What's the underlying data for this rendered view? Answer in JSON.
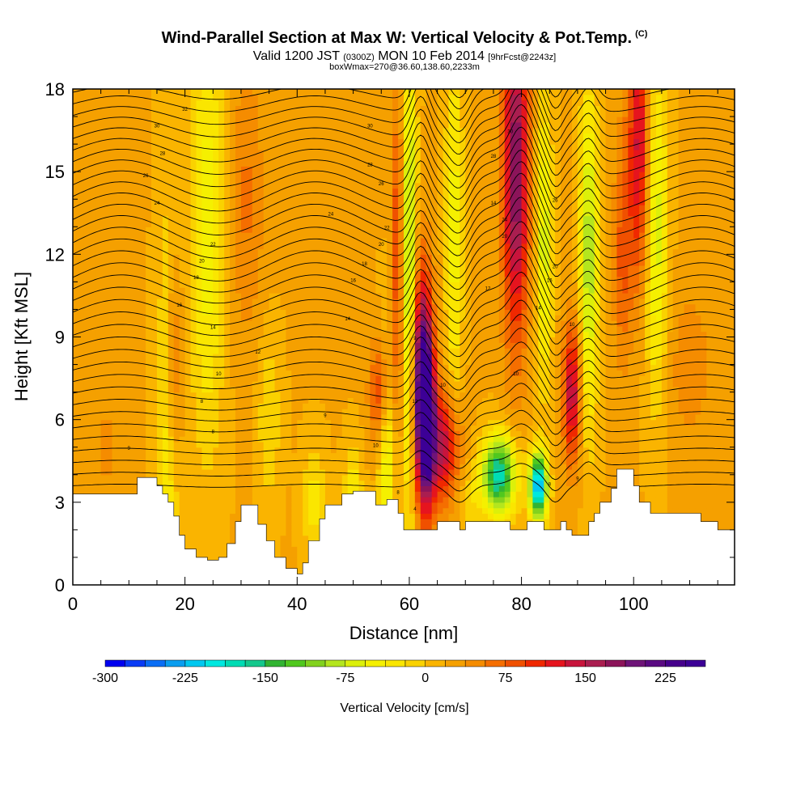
{
  "title": "Wind-Parallel Section at Max W: Vertical Velocity & Pot.Temp.",
  "title_mark": "(C)",
  "subtitle_main": "Valid 1200 JST",
  "subtitle_z": "(0300Z)",
  "subtitle_date": "MON 10 Feb 2014",
  "subtitle_fcst": "[9hrFcst@2243z]",
  "subtitle_box": "boxWmax=270@36.60,138.60,2233m",
  "chart_data": {
    "type": "heatmap",
    "xlabel": "Distance [nm]",
    "ylabel": "Height [Kft MSL]",
    "xlim": [
      0,
      118
    ],
    "ylim": [
      0,
      18
    ],
    "xticks": [
      0,
      20,
      40,
      60,
      80,
      100
    ],
    "yticks": [
      0,
      3,
      6,
      9,
      12,
      15,
      18
    ],
    "colorbar": {
      "label": "Vertical Velocity [cm/s]",
      "ticks": [
        -300,
        -225,
        -150,
        -75,
        0,
        75,
        150,
        225
      ],
      "min": -300,
      "max": 262.5,
      "step": 18.75,
      "colors": [
        "#0000f0",
        "#0a3cf5",
        "#0a6ef5",
        "#0a9ef0",
        "#00c8f0",
        "#00e8e0",
        "#00dcb4",
        "#14c88c",
        "#32b432",
        "#50c81e",
        "#82d21e",
        "#b4e61e",
        "#dcf00a",
        "#f5f000",
        "#fae600",
        "#fad200",
        "#fab400",
        "#f5a000",
        "#f58c00",
        "#f56e00",
        "#f05000",
        "#f02800",
        "#e6141e",
        "#c8143c",
        "#aa1e50",
        "#8c145a",
        "#6e1478",
        "#5a0a82",
        "#46008c",
        "#3c0096"
      ]
    },
    "terrain_kft": [
      [
        0,
        3.3
      ],
      [
        10,
        3.3
      ],
      [
        11.5,
        3.9
      ],
      [
        13.5,
        3.9
      ],
      [
        15,
        3.6
      ],
      [
        16,
        3.3
      ],
      [
        17,
        3.0
      ],
      [
        18,
        2.5
      ],
      [
        19,
        1.8
      ],
      [
        20,
        1.3
      ],
      [
        22,
        1.0
      ],
      [
        24,
        0.9
      ],
      [
        26,
        1.0
      ],
      [
        27.5,
        1.5
      ],
      [
        29,
        2.3
      ],
      [
        30,
        2.9
      ],
      [
        32,
        2.9
      ],
      [
        33,
        2.2
      ],
      [
        34.5,
        1.6
      ],
      [
        36,
        1.0
      ],
      [
        38,
        0.6
      ],
      [
        40,
        0.4
      ],
      [
        41,
        0.8
      ],
      [
        42,
        1.6
      ],
      [
        44,
        2.4
      ],
      [
        45,
        2.9
      ],
      [
        47,
        2.9
      ],
      [
        48,
        3.3
      ],
      [
        50,
        3.4
      ],
      [
        52,
        3.4
      ],
      [
        54,
        2.9
      ],
      [
        56,
        3.1
      ],
      [
        58,
        2.6
      ],
      [
        59,
        2.0
      ],
      [
        64,
        2.0
      ],
      [
        65,
        2.3
      ],
      [
        68,
        2.3
      ],
      [
        69,
        2.0
      ],
      [
        70,
        2.3
      ],
      [
        77,
        2.3
      ],
      [
        78,
        2.0
      ],
      [
        80,
        2.0
      ],
      [
        81,
        2.3
      ],
      [
        83,
        2.3
      ],
      [
        84,
        2.0
      ],
      [
        86,
        2.0
      ],
      [
        87,
        2.3
      ],
      [
        88,
        2.0
      ],
      [
        89,
        1.8
      ],
      [
        91,
        1.8
      ],
      [
        92,
        2.3
      ],
      [
        93,
        2.6
      ],
      [
        94,
        3.0
      ],
      [
        96,
        3.5
      ],
      [
        97,
        4.2
      ],
      [
        99,
        4.2
      ],
      [
        100,
        3.6
      ],
      [
        101,
        3.0
      ],
      [
        103,
        2.6
      ],
      [
        110,
        2.6
      ],
      [
        112,
        2.3
      ],
      [
        115,
        2.0
      ],
      [
        118,
        2.0
      ]
    ],
    "contour_labels": [
      {
        "text": "9",
        "x": 10,
        "y": 4.9
      },
      {
        "text": "8",
        "x": 25,
        "y": 5.5
      },
      {
        "text": "8",
        "x": 23,
        "y": 6.6
      },
      {
        "text": "10",
        "x": 26,
        "y": 7.6
      },
      {
        "text": "14",
        "x": 25,
        "y": 9.3
      },
      {
        "text": "16",
        "x": 19,
        "y": 10.1
      },
      {
        "text": "18",
        "x": 22,
        "y": 11.1
      },
      {
        "text": "20",
        "x": 23,
        "y": 11.7
      },
      {
        "text": "22",
        "x": 25,
        "y": 12.3
      },
      {
        "text": "24",
        "x": 15,
        "y": 13.8
      },
      {
        "text": "26",
        "x": 13,
        "y": 14.8
      },
      {
        "text": "28",
        "x": 16,
        "y": 15.6
      },
      {
        "text": "30",
        "x": 15,
        "y": 16.6
      },
      {
        "text": "32",
        "x": 20,
        "y": 17.2
      },
      {
        "text": "12",
        "x": 33,
        "y": 8.4
      },
      {
        "text": "9",
        "x": 45,
        "y": 6.1
      },
      {
        "text": "14",
        "x": 49,
        "y": 9.6
      },
      {
        "text": "10",
        "x": 54,
        "y": 5.0
      },
      {
        "text": "16",
        "x": 50,
        "y": 11.0
      },
      {
        "text": "18",
        "x": 52,
        "y": 11.6
      },
      {
        "text": "20",
        "x": 55,
        "y": 12.3
      },
      {
        "text": "22",
        "x": 56,
        "y": 12.9
      },
      {
        "text": "24",
        "x": 46,
        "y": 13.4
      },
      {
        "text": "26",
        "x": 55,
        "y": 14.5
      },
      {
        "text": "28",
        "x": 53,
        "y": 15.2
      },
      {
        "text": "30",
        "x": 53,
        "y": 16.6
      },
      {
        "text": "12",
        "x": 61,
        "y": 6.6
      },
      {
        "text": "9",
        "x": 61,
        "y": 8.9
      },
      {
        "text": "8",
        "x": 58,
        "y": 3.3
      },
      {
        "text": "4",
        "x": 61,
        "y": 2.7
      },
      {
        "text": "10",
        "x": 66,
        "y": 7.2
      },
      {
        "text": "12",
        "x": 74,
        "y": 10.7
      },
      {
        "text": "14",
        "x": 75,
        "y": 13.8
      },
      {
        "text": "28",
        "x": 75,
        "y": 15.5
      },
      {
        "text": "30",
        "x": 78,
        "y": 16.4
      },
      {
        "text": "20",
        "x": 77,
        "y": 12.6
      },
      {
        "text": "24",
        "x": 77,
        "y": 13.2
      },
      {
        "text": "14",
        "x": 83,
        "y": 10.0
      },
      {
        "text": "16",
        "x": 85,
        "y": 11.0
      },
      {
        "text": "20",
        "x": 86,
        "y": 11.5
      },
      {
        "text": "26",
        "x": 86,
        "y": 13.9
      },
      {
        "text": "10",
        "x": 89,
        "y": 9.4
      },
      {
        "text": "10",
        "x": 79,
        "y": 7.6
      },
      {
        "text": "9",
        "x": 90,
        "y": 3.8
      },
      {
        "text": "8",
        "x": 85,
        "y": 3.6
      }
    ]
  }
}
